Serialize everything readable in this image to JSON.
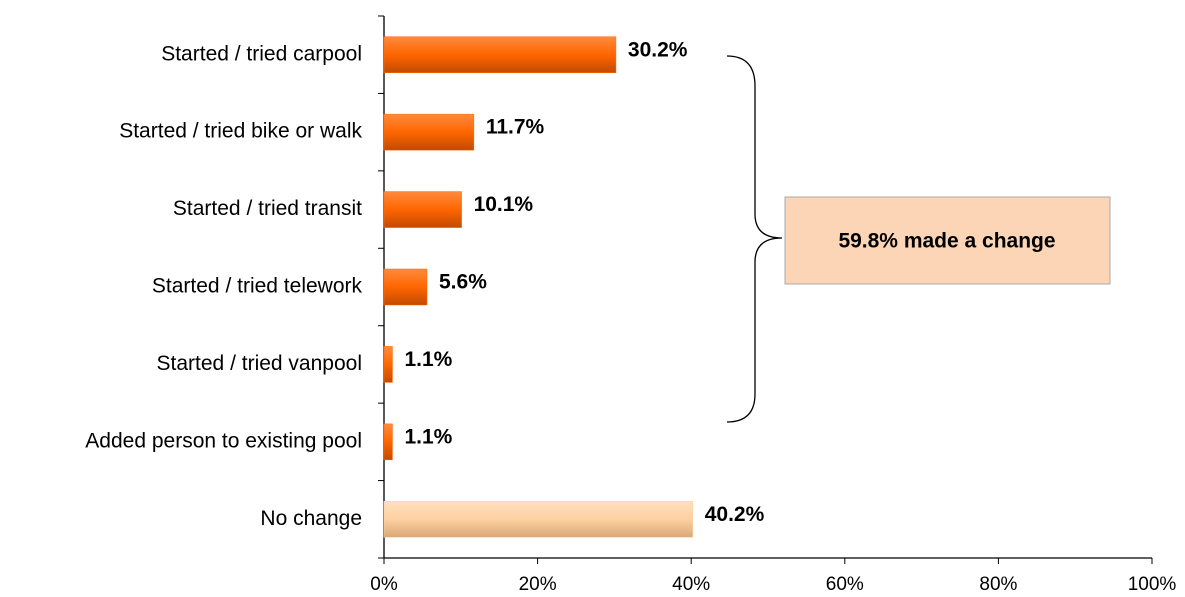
{
  "chart_data": {
    "type": "bar",
    "orientation": "horizontal",
    "categories": [
      "Started / tried carpool",
      "Started / tried bike or walk",
      "Started / tried transit",
      "Started / tried telework",
      "Started / tried vanpool",
      "Added person to existing pool",
      "No change"
    ],
    "values": [
      30.2,
      11.7,
      10.1,
      5.6,
      1.1,
      1.1,
      40.2
    ],
    "value_labels": [
      "30.2%",
      "11.7%",
      "10.1%",
      "5.6%",
      "1.1%",
      "1.1%",
      "40.2%"
    ],
    "colors": [
      "#ff6600",
      "#ff6600",
      "#ff6600",
      "#ff6600",
      "#ff6600",
      "#ff6600",
      "#fdd0a0"
    ],
    "xlim": [
      0,
      100
    ],
    "xticks": [
      {
        "value": 0,
        "label": "0%"
      },
      {
        "value": 20,
        "label": "20%"
      },
      {
        "value": 40,
        "label": "40%"
      },
      {
        "value": 60,
        "label": "60%"
      },
      {
        "value": 80,
        "label": "80%"
      },
      {
        "value": 100,
        "label": "100%"
      }
    ],
    "annotation": "59.8% made a change"
  }
}
